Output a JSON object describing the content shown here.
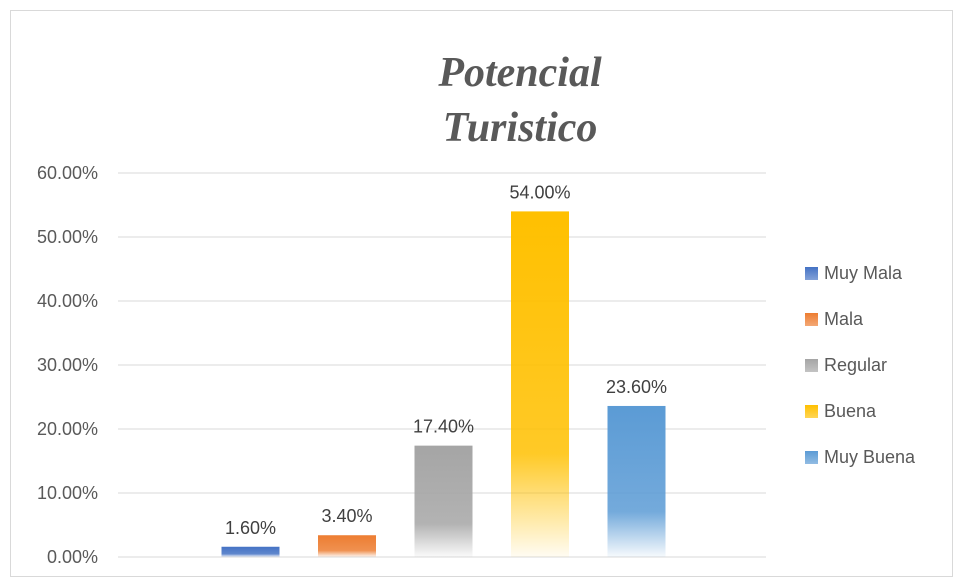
{
  "chart_data": {
    "type": "bar",
    "title": "Potencial Turistico",
    "categories": [
      "Muy Mala",
      "Mala",
      "Regular",
      "Buena",
      "Muy Buena"
    ],
    "values": [
      1.6,
      3.4,
      17.4,
      54.0,
      23.6
    ],
    "value_labels": [
      "1.60%",
      "3.40%",
      "17.40%",
      "54.00%",
      "23.60%"
    ],
    "ylim": [
      0,
      60
    ],
    "yticks": [
      "0.00%",
      "10.00%",
      "20.00%",
      "30.00%",
      "40.00%",
      "50.00%",
      "60.00%"
    ],
    "grid": true,
    "legend_position": "right",
    "colors": [
      "#4472c4",
      "#ed7d31",
      "#a5a5a5",
      "#ffc000",
      "#5b9bd5"
    ],
    "xlabel": "",
    "ylabel": ""
  }
}
